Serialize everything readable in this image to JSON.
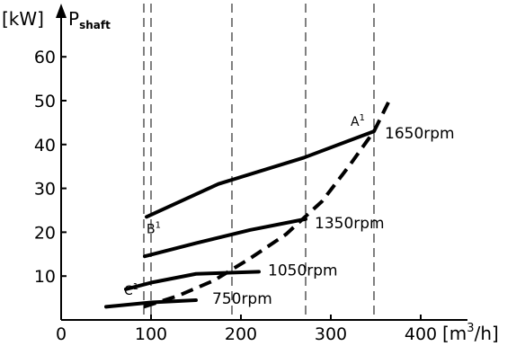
{
  "chart_data": {
    "type": "line",
    "ylabel_unit": "[kW]",
    "ylabel_symbol": "P",
    "ylabel_subscript": "shaft",
    "xlabel_unit_pre": "[m",
    "xlabel_unit_sup": "3",
    "xlabel_unit_post": "/h]",
    "xlim": [
      0,
      420
    ],
    "ylim": [
      0,
      66
    ],
    "xticks": [
      0,
      100,
      200,
      300,
      400
    ],
    "yticks": [
      10,
      20,
      30,
      40,
      50,
      60
    ],
    "vertical_dashed_lines_x": [
      92,
      100,
      190,
      272,
      348
    ],
    "series": [
      {
        "name": "1650rpm",
        "x": [
          95,
          175,
          270,
          348
        ],
        "y": [
          23.5,
          31,
          37,
          43
        ]
      },
      {
        "name": "1350rpm",
        "x": [
          93,
          150,
          210,
          272
        ],
        "y": [
          14.5,
          17.5,
          20.5,
          23
        ]
      },
      {
        "name": "1050rpm",
        "x": [
          72,
          100,
          150,
          220
        ],
        "y": [
          7,
          8.5,
          10.5,
          11
        ]
      },
      {
        "name": "750rpm",
        "x": [
          50,
          100,
          150
        ],
        "y": [
          3,
          4,
          4.5
        ]
      }
    ],
    "system_curve": {
      "style": "dashed",
      "x": [
        92,
        130,
        170,
        210,
        250,
        290,
        320,
        348,
        365
      ],
      "y": [
        3,
        5.5,
        9,
        14,
        19.5,
        27,
        35,
        43,
        50
      ]
    },
    "annotations": [
      {
        "label": "A",
        "sup": "1",
        "x": 348,
        "y": 43,
        "pos": "upper-left"
      },
      {
        "label": "B",
        "sup": "1",
        "x": 95,
        "y": 23.5,
        "pos": "below-right"
      },
      {
        "label": "C",
        "sup": "1",
        "x": 92,
        "y": 4.5,
        "pos": "upper"
      }
    ]
  }
}
